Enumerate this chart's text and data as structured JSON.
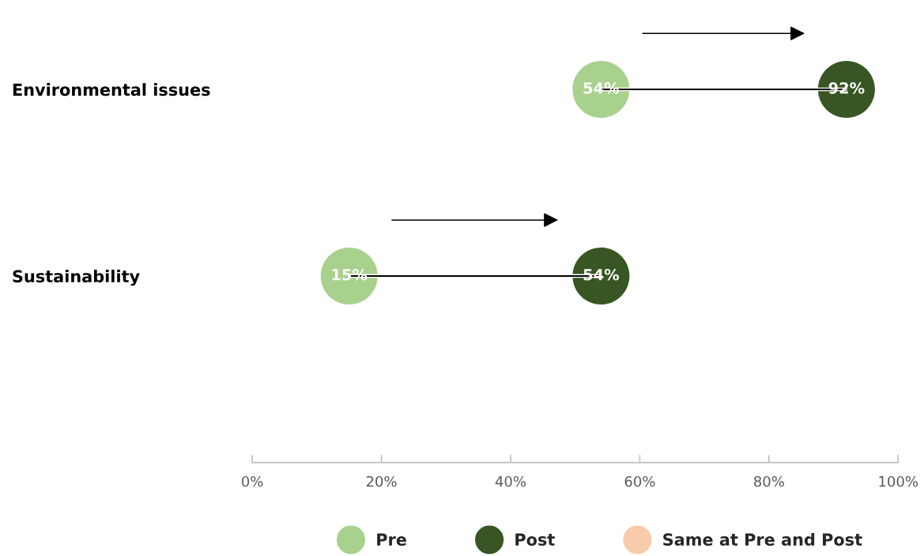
{
  "chart_data": {
    "type": "scatter",
    "orientation": "horizontal",
    "categories": [
      "Environmental issues",
      "Sustainability"
    ],
    "series": [
      {
        "type": "bar",
        "color": "#000000",
        "base": [
          54,
          15
        ],
        "values": [
          38,
          39
        ]
      },
      {
        "name": "Pre",
        "color": "#a9d18e",
        "values": [
          54,
          15
        ],
        "value_labels": [
          "54%",
          "15%"
        ]
      },
      {
        "name": "Post",
        "color": "#375623",
        "values": [
          92,
          54
        ],
        "value_labels": [
          "92%",
          "54%"
        ]
      },
      {
        "name": "Same at Pre and Post",
        "color": "#f8cbad",
        "values": [
          null,
          null
        ]
      }
    ],
    "xlim": [
      0,
      100
    ],
    "xticks": [
      {
        "value": 0,
        "label": "0%"
      },
      {
        "value": 20,
        "label": "20%"
      },
      {
        "value": 40,
        "label": "40%"
      },
      {
        "value": 60,
        "label": "60%"
      },
      {
        "value": 80,
        "label": "80%"
      },
      {
        "value": 100,
        "label": "100%"
      }
    ],
    "legend": "bottom",
    "marker": "circle"
  }
}
